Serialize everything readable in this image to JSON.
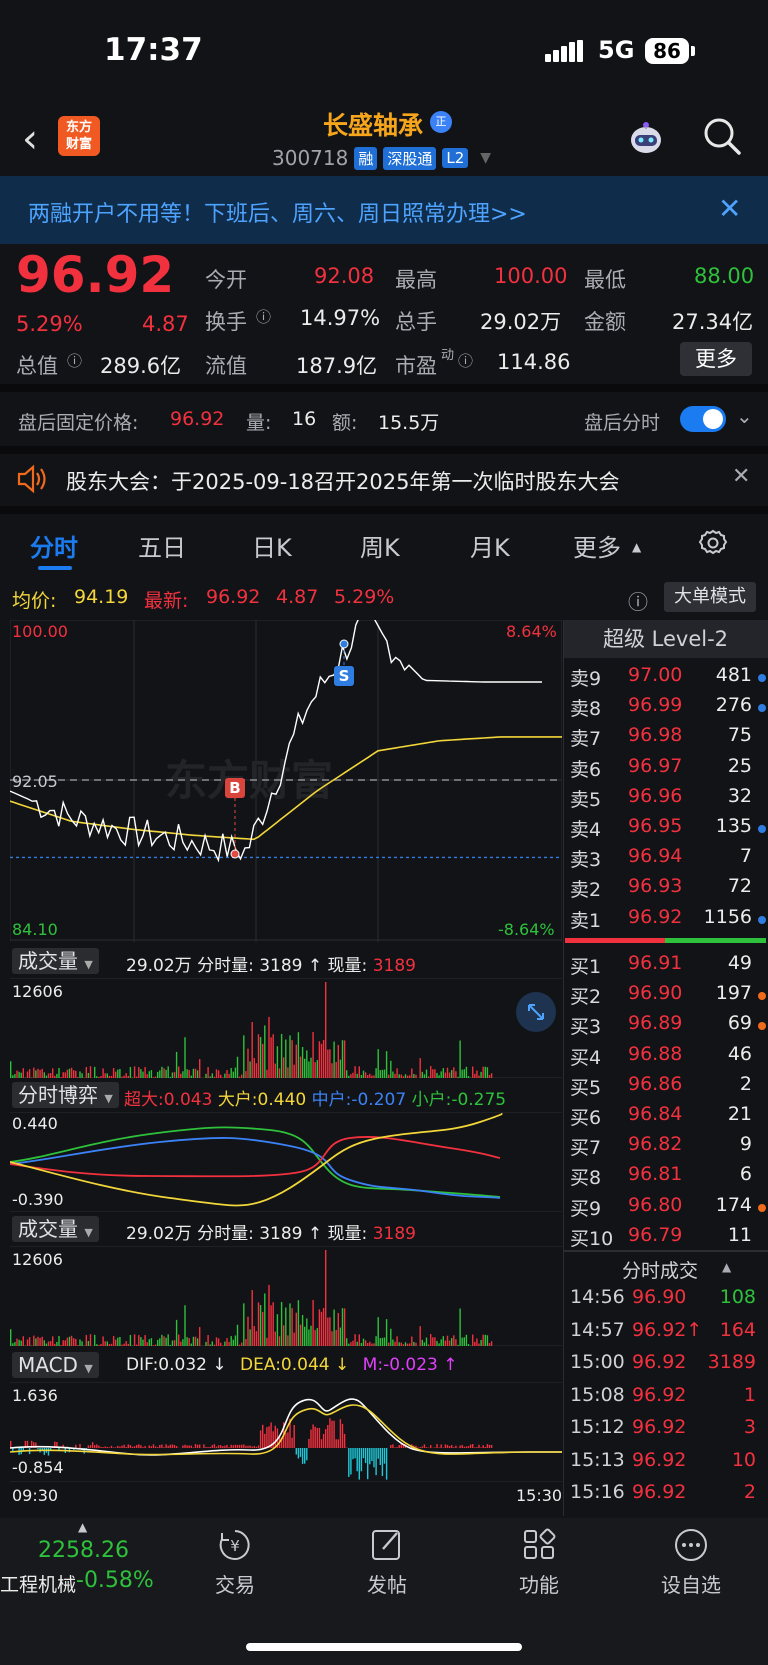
{
  "status_bar": {
    "time": "17:37",
    "network": "5G",
    "battery": "86"
  },
  "header": {
    "stock_name": "长盛轴承",
    "name_badge": "正",
    "code": "300718",
    "tags": [
      "融",
      "深股通",
      "L2"
    ],
    "logo_line1": "东方",
    "logo_line2": "财富"
  },
  "banner": {
    "text": "两融开户不用等！下班后、周六、周日照常办理>>"
  },
  "quote": {
    "price": "96.92",
    "change_pct": "5.29%",
    "change": "4.87",
    "open_label": "今开",
    "open": "92.08",
    "high_label": "最高",
    "high": "100.00",
    "low_label": "最低",
    "low": "88.00",
    "turnover_label": "换手",
    "turnover": "14.97%",
    "volume_label": "总手",
    "volume": "29.02万",
    "amount_label": "金额",
    "amount": "27.34亿",
    "mktcap_label": "总值",
    "mktcap": "289.6亿",
    "float_label": "流值",
    "float": "187.9亿",
    "pe_label": "市盈",
    "pe_sup": "动",
    "pe": "114.86",
    "more_label": "更多"
  },
  "after_hours": {
    "label": "盘后固定价格:",
    "price": "96.92",
    "qty_label": "量:",
    "qty": "16",
    "amt_label": "额:",
    "amt": "15.5万",
    "toggle_label": "盘后分时",
    "toggle_on": true
  },
  "notice": {
    "text": "股东大会：于2025-09-18召开2025年第一次临时股东大会"
  },
  "tabs": [
    "分时",
    "五日",
    "日K",
    "周K",
    "月K",
    "更多"
  ],
  "active_tab": "分时",
  "chart_info": {
    "avg_label": "均价:",
    "avg": "94.19",
    "latest_label": "最新:",
    "latest": "96.92",
    "chg": "4.87",
    "pct": "5.29%",
    "big_order_mode": "大单模式"
  },
  "chart_data": {
    "type": "line",
    "x": [
      "09:30",
      "10:00",
      "10:30",
      "11:00",
      "11:30",
      "13:30",
      "14:00",
      "14:30",
      "15:00",
      "15:30"
    ],
    "series": [
      {
        "values": [
          91.5,
          90.2,
          89.5,
          89.0,
          88.5,
          95.5,
          100.0,
          97.0,
          96.92,
          96.92
        ]
      },
      {
        "values": [
          91.0,
          90.0,
          89.6,
          89.3,
          89.1,
          91.5,
          93.5,
          94.0,
          94.19,
          94.19
        ]
      }
    ],
    "ylim": [
      84.1,
      100.0
    ],
    "prev_close": "92.05",
    "y_top": "100.00",
    "y_bottom": "84.10",
    "pct_top": "8.64%",
    "pct_bottom": "-8.64%",
    "buy_marker": "B",
    "sell_marker": "S"
  },
  "volume_panel": {
    "label": "成交量",
    "total": "29.02万",
    "fenshi_label": "分时量:",
    "fenshi": "3189",
    "arrow": "↑",
    "now_label": "现量:",
    "now": "3189",
    "ymax": "12606"
  },
  "boyi_panel": {
    "label": "分时博弈",
    "super_label": "超大:",
    "super": "0.043",
    "big_label": "大户:",
    "big": "0.440",
    "mid_label": "中户:",
    "mid": "-0.207",
    "small_label": "小户:",
    "small": "-0.275",
    "ymax": "0.440",
    "ymin": "-0.390"
  },
  "volume_panel2": {
    "label": "成交量",
    "total": "29.02万",
    "fenshi_label": "分时量:",
    "fenshi": "3189",
    "arrow": "↑",
    "now_label": "现量:",
    "now": "3189",
    "ymax": "12606"
  },
  "macd_panel": {
    "label": "MACD",
    "dif_label": "DIF:",
    "dif": "0.032",
    "dif_arrow": "↓",
    "dea_label": "DEA:",
    "dea": "0.044",
    "dea_arrow": "↓",
    "m_label": "M:",
    "m": "-0.023",
    "m_arrow": "↑",
    "ymax": "1.636",
    "ymin": "-0.854",
    "t_start": "09:30",
    "t_end": "15:30"
  },
  "order_book": {
    "title": "超级 Level-2",
    "asks": [
      {
        "label": "卖9",
        "price": "97.00",
        "vol": "481",
        "dot": "#2f7de1"
      },
      {
        "label": "卖8",
        "price": "96.99",
        "vol": "276",
        "dot": "#2f7de1"
      },
      {
        "label": "卖7",
        "price": "96.98",
        "vol": "75",
        "dot": ""
      },
      {
        "label": "卖6",
        "price": "96.97",
        "vol": "25",
        "dot": ""
      },
      {
        "label": "卖5",
        "price": "96.96",
        "vol": "32",
        "dot": ""
      },
      {
        "label": "卖4",
        "price": "96.95",
        "vol": "135",
        "dot": "#2f7de1"
      },
      {
        "label": "卖3",
        "price": "96.94",
        "vol": "7",
        "dot": ""
      },
      {
        "label": "卖2",
        "price": "96.93",
        "vol": "72",
        "dot": ""
      },
      {
        "label": "卖1",
        "price": "96.92",
        "vol": "1156",
        "dot": "#2f7de1"
      }
    ],
    "bids": [
      {
        "label": "买1",
        "price": "96.91",
        "vol": "49",
        "dot": ""
      },
      {
        "label": "买2",
        "price": "96.90",
        "vol": "197",
        "dot": "#f06a1b"
      },
      {
        "label": "买3",
        "price": "96.89",
        "vol": "69",
        "dot": "#f06a1b"
      },
      {
        "label": "买4",
        "price": "96.88",
        "vol": "46",
        "dot": ""
      },
      {
        "label": "买5",
        "price": "96.86",
        "vol": "2",
        "dot": ""
      },
      {
        "label": "买6",
        "price": "96.84",
        "vol": "21",
        "dot": ""
      },
      {
        "label": "买7",
        "price": "96.82",
        "vol": "9",
        "dot": ""
      },
      {
        "label": "买8",
        "price": "96.81",
        "vol": "6",
        "dot": ""
      },
      {
        "label": "买9",
        "price": "96.80",
        "vol": "174",
        "dot": "#f06a1b"
      },
      {
        "label": "买10",
        "price": "96.79",
        "vol": "11",
        "dot": ""
      }
    ]
  },
  "trades": {
    "title": "分时成交",
    "rows": [
      {
        "time": "14:56",
        "price": "96.90",
        "vol": "108",
        "vol_color": "#2ec13b"
      },
      {
        "time": "14:57",
        "price": "96.92↑",
        "vol": "164",
        "vol_color": "#f2313f"
      },
      {
        "time": "15:00",
        "price": "96.92",
        "vol": "3189",
        "vol_color": "#f2313f"
      },
      {
        "time": "15:08",
        "price": "96.92",
        "vol": "1",
        "vol_color": "#f2313f"
      },
      {
        "time": "15:12",
        "price": "96.92",
        "vol": "3",
        "vol_color": "#f2313f"
      },
      {
        "time": "15:13",
        "price": "96.92",
        "vol": "10",
        "vol_color": "#f2313f"
      },
      {
        "time": "15:16",
        "price": "96.92",
        "vol": "2",
        "vol_color": "#f2313f"
      }
    ]
  },
  "bottom_nav": {
    "index_value": "2258.26",
    "index_name": "工程机械",
    "index_pct": "-0.58%",
    "items": [
      "交易",
      "发帖",
      "功能",
      "设自选"
    ]
  },
  "watermark": "东方财富",
  "colors": {
    "up": "#f2313f",
    "down": "#2ec13b",
    "accent": "#1a7cf0",
    "price_line": "#ffffff",
    "avg_line": "#f3d73a"
  }
}
